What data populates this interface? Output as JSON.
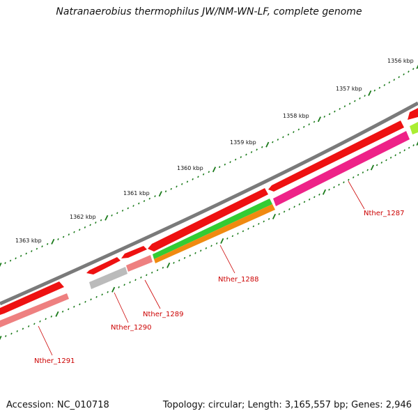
{
  "title": "Natranaerobius thermophilus JW/NM-WN-LF, complete genome",
  "accession_label": "Accession: NC_010718",
  "summary_label": "Topology: circular; Length: 3,165,557 bp; Genes: 2,946",
  "ticks": [
    {
      "label": "1356 kbp"
    },
    {
      "label": "1357 kbp"
    },
    {
      "label": "1358 kbp"
    },
    {
      "label": "1359 kbp"
    },
    {
      "label": "1360 kbp"
    },
    {
      "label": "1361 kbp"
    },
    {
      "label": "1362 kbp"
    },
    {
      "label": "1363 kbp"
    }
  ],
  "genes": [
    {
      "name": "Nther_1287"
    },
    {
      "name": "Nther_1288"
    },
    {
      "name": "Nther_1289"
    },
    {
      "name": "Nther_1290"
    },
    {
      "name": "Nther_1291"
    }
  ],
  "colors": {
    "backbone": "#7a7a7a",
    "cds": "#ee1111",
    "tick": "#1a7a1a",
    "label": "#cc0000",
    "pink": "#ee2288",
    "salmon": "#ee8080",
    "grey": "#bbbbbb",
    "green": "#33cc33",
    "orange": "#f08a10",
    "lime": "#aaee33"
  }
}
